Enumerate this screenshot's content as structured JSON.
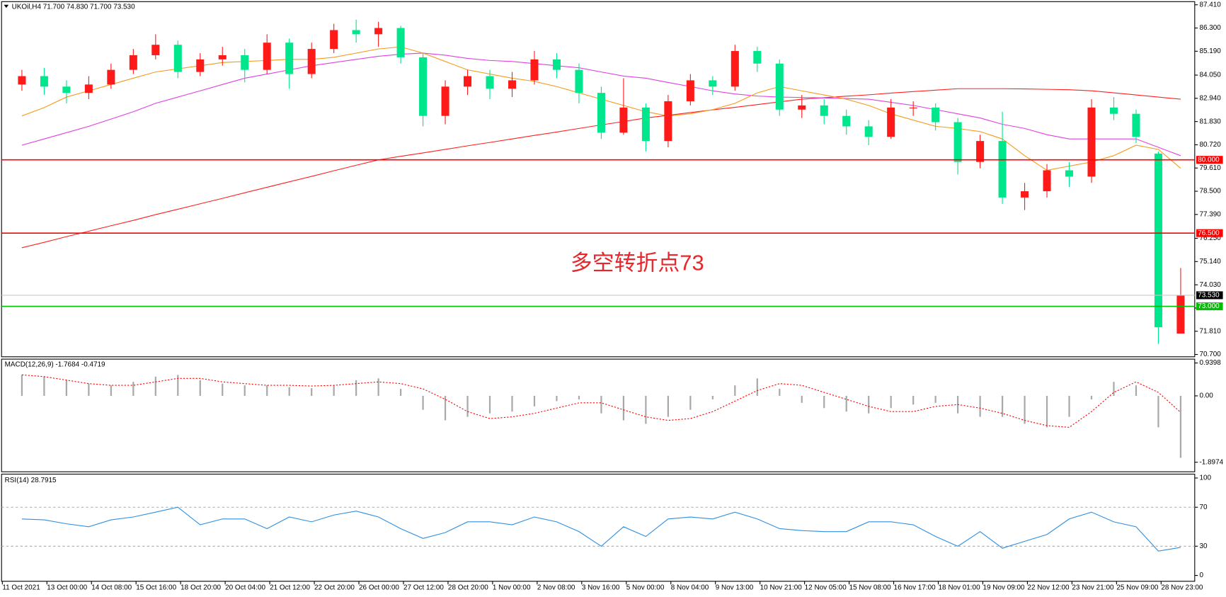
{
  "chart_data": [
    {
      "type": "candlestick",
      "title": "UKOil,H4  71.700 74.830 71.700 73.530",
      "categories": [
        "11 Oct 2021",
        null,
        "13 Oct 00:00",
        null,
        "14 Oct 08:00",
        null,
        "15 Oct 16:00",
        null,
        "18 Oct 20:00",
        null,
        "20 Oct 04:00",
        null,
        "21 Oct 12:00",
        null,
        "22 Oct 20:00",
        null,
        "26 Oct 00:00",
        null,
        "27 Oct 12:00",
        null,
        "28 Oct 20:00",
        null,
        "1 Nov 00:00",
        null,
        "2 Nov 08:00",
        null,
        "3 Nov 16:00",
        null,
        "5 Nov 00:00",
        null,
        "8 Nov 04:00",
        null,
        "9 Nov 13:00",
        null,
        "10 Nov 21:00",
        null,
        "12 Nov 05:00",
        null,
        "15 Nov 08:00",
        null,
        "16 Nov 17:00",
        null,
        "18 Nov 01:00",
        null,
        "19 Nov 09:00",
        null,
        "22 Nov 12:00",
        null,
        "23 Nov 21:00",
        null,
        "25 Nov 09:00",
        null,
        "28 Nov 23:00"
      ],
      "open": [
        83.6,
        84.0,
        83.5,
        83.2,
        83.6,
        84.3,
        85.0,
        85.5,
        84.2,
        84.8,
        85.0,
        84.3,
        85.6,
        84.1,
        85.3,
        86.2,
        86.0,
        86.3,
        84.9,
        82.1,
        83.5,
        84.0,
        83.4,
        83.8,
        84.8,
        84.3,
        83.2,
        81.3,
        82.5,
        80.9,
        82.8,
        83.8,
        83.5,
        85.2,
        84.6,
        82.4,
        82.6,
        82.1,
        81.6,
        81.1,
        82.5,
        82.5,
        81.8,
        79.9,
        80.9,
        78.2,
        78.5,
        79.5,
        79.2,
        82.5,
        82.2,
        80.3,
        71.7
      ],
      "high": [
        84.3,
        84.4,
        83.8,
        84.0,
        84.6,
        85.3,
        86.0,
        85.7,
        85.1,
        85.4,
        85.3,
        86.0,
        85.8,
        85.6,
        86.5,
        86.7,
        86.6,
        86.4,
        85.1,
        83.8,
        84.3,
        84.3,
        84.2,
        85.2,
        85.1,
        84.6,
        83.5,
        83.9,
        82.7,
        83.1,
        84.1,
        84.0,
        85.5,
        85.4,
        84.8,
        83.1,
        82.9,
        82.4,
        81.9,
        82.9,
        82.8,
        82.7,
        82.0,
        81.2,
        82.3,
        78.9,
        79.8,
        79.9,
        82.9,
        83.0,
        82.4,
        80.4,
        74.83
      ],
      "low": [
        83.3,
        83.1,
        82.7,
        82.9,
        83.4,
        84.1,
        84.8,
        83.9,
        84.0,
        84.5,
        83.7,
        84.1,
        83.4,
        83.9,
        85.1,
        85.6,
        85.4,
        84.6,
        81.6,
        81.7,
        83.1,
        82.9,
        83.0,
        83.6,
        83.9,
        82.7,
        81.0,
        81.2,
        80.4,
        80.6,
        82.6,
        83.1,
        83.3,
        84.2,
        82.1,
        82.0,
        81.7,
        81.2,
        80.7,
        81.0,
        82.1,
        81.4,
        79.3,
        79.6,
        77.9,
        77.6,
        78.2,
        78.7,
        78.9,
        81.9,
        80.8,
        71.2,
        71.7
      ],
      "close": [
        84.0,
        83.5,
        83.2,
        83.6,
        84.3,
        85.0,
        85.5,
        84.2,
        84.8,
        85.0,
        84.3,
        85.6,
        84.1,
        85.3,
        86.2,
        86.0,
        86.3,
        84.9,
        82.1,
        83.5,
        84.0,
        83.4,
        83.8,
        84.8,
        84.3,
        83.2,
        81.3,
        82.5,
        80.9,
        82.8,
        83.8,
        83.5,
        85.2,
        84.6,
        82.4,
        82.6,
        82.1,
        81.6,
        81.1,
        82.5,
        82.5,
        81.8,
        79.9,
        80.9,
        78.2,
        78.5,
        79.5,
        79.2,
        82.5,
        82.2,
        81.1,
        72.0,
        73.53
      ],
      "up_color": "#ff1a1a",
      "down_color": "#00e68c",
      "ylim": [
        70.59,
        87.56
      ],
      "yticks": [
        {
          "value": 87.41,
          "label": "87.410"
        },
        {
          "value": 86.3,
          "label": "86.300"
        },
        {
          "value": 85.19,
          "label": "85.190"
        },
        {
          "value": 84.05,
          "label": "84.050"
        },
        {
          "value": 82.94,
          "label": "82.940"
        },
        {
          "value": 81.83,
          "label": "81.830"
        },
        {
          "value": 80.72,
          "label": "80.720"
        },
        {
          "value": 79.61,
          "label": "79.610"
        },
        {
          "value": 78.5,
          "label": "78.500"
        },
        {
          "value": 77.39,
          "label": "77.390"
        },
        {
          "value": 76.25,
          "label": "76.250"
        },
        {
          "value": 75.14,
          "label": "75.140"
        },
        {
          "value": 74.03,
          "label": "74.030"
        },
        {
          "value": 72.92,
          "label": "72.920"
        },
        {
          "value": 71.81,
          "label": "71.810"
        },
        {
          "value": 70.7,
          "label": "70.700"
        }
      ],
      "series": [
        {
          "color": "#ff2020",
          "values": [
            75.8,
            76.06,
            76.33,
            76.59,
            76.85,
            77.11,
            77.38,
            77.64,
            77.9,
            78.16,
            78.43,
            78.69,
            78.95,
            79.21,
            79.48,
            79.74,
            80.0,
            80.17,
            80.33,
            80.5,
            80.67,
            80.83,
            81.0,
            81.17,
            81.33,
            81.5,
            81.67,
            81.83,
            82.0,
            82.13,
            82.26,
            82.39,
            82.51,
            82.64,
            82.77,
            82.9,
            82.97,
            83.04,
            83.11,
            83.19,
            83.26,
            83.33,
            83.4,
            83.4,
            83.4,
            83.39,
            83.37,
            83.35,
            83.3,
            83.2,
            83.1,
            83.0,
            82.9
          ]
        },
        {
          "color": "#e040e0",
          "values": [
            80.7,
            81.0,
            81.3,
            81.6,
            81.95,
            82.3,
            82.7,
            83.0,
            83.3,
            83.6,
            83.9,
            84.1,
            84.3,
            84.5,
            84.65,
            84.8,
            84.95,
            85.05,
            85.1,
            85.0,
            84.85,
            84.75,
            84.7,
            84.6,
            84.5,
            84.4,
            84.2,
            84.0,
            83.9,
            83.7,
            83.5,
            83.3,
            83.15,
            83.05,
            83.0,
            82.98,
            82.96,
            82.93,
            82.9,
            82.75,
            82.6,
            82.4,
            82.2,
            82.0,
            81.7,
            81.5,
            81.2,
            81.0,
            81.0,
            81.0,
            81.0,
            80.6,
            80.2
          ]
        },
        {
          "color": "#f39c1e",
          "values": [
            82.1,
            82.5,
            83.0,
            83.3,
            83.6,
            83.9,
            84.2,
            84.35,
            84.5,
            84.65,
            84.7,
            84.75,
            84.8,
            84.8,
            84.9,
            85.1,
            85.3,
            85.4,
            85.1,
            84.7,
            84.3,
            84.1,
            83.9,
            83.75,
            83.5,
            83.2,
            82.9,
            82.6,
            82.3,
            82.1,
            82.2,
            82.4,
            82.7,
            83.2,
            83.5,
            83.3,
            83.1,
            82.9,
            82.6,
            82.2,
            81.9,
            81.6,
            81.5,
            81.35,
            81.0,
            80.2,
            79.5,
            79.7,
            79.9,
            80.2,
            80.7,
            80.5,
            79.6
          ]
        }
      ],
      "levels": [
        {
          "value": 80,
          "label": "80.000",
          "color": "#ff0000",
          "box_color": "#ff0000"
        },
        {
          "value": 76.5,
          "label": "76.500",
          "color": "#ff0000",
          "box_color": "#ff0000"
        },
        {
          "value": 73,
          "label": "73.000",
          "color": "#00c000",
          "box_color": "#00c000"
        },
        {
          "value": 73.53,
          "label": "73.530",
          "color": "#c8c8c8",
          "box_color": "#000000"
        }
      ],
      "annotation": "多空转折点73",
      "annotation_color": "#e8262b"
    },
    {
      "type": "macd",
      "title": "MACD(12,26,9) -1.7684 -0.4719",
      "values": [
        0.6,
        0.55,
        0.45,
        0.35,
        0.3,
        0.4,
        0.55,
        0.6,
        0.45,
        0.35,
        0.3,
        0.3,
        0.25,
        0.22,
        0.3,
        0.45,
        0.5,
        0.2,
        -0.4,
        -0.7,
        -0.6,
        -0.5,
        -0.45,
        -0.3,
        -0.15,
        -0.1,
        -0.5,
        -0.7,
        -0.8,
        -0.6,
        -0.4,
        -0.1,
        0.3,
        0.5,
        0.2,
        -0.2,
        -0.35,
        -0.45,
        -0.5,
        -0.35,
        -0.25,
        -0.2,
        -0.5,
        -0.6,
        -0.6,
        -0.8,
        -0.9,
        -0.6,
        -0.1,
        0.4,
        0.3,
        -0.9,
        -1.7684
      ],
      "color": "#a8a8a8",
      "signal": {
        "color": "#ff0000",
        "values": [
          0.6,
          0.55,
          0.45,
          0.35,
          0.3,
          0.3,
          0.4,
          0.5,
          0.5,
          0.4,
          0.35,
          0.3,
          0.3,
          0.28,
          0.3,
          0.35,
          0.4,
          0.35,
          0.2,
          -0.1,
          -0.45,
          -0.65,
          -0.6,
          -0.5,
          -0.35,
          -0.2,
          -0.2,
          -0.4,
          -0.6,
          -0.7,
          -0.65,
          -0.45,
          -0.15,
          0.15,
          0.35,
          0.3,
          0.1,
          -0.1,
          -0.3,
          -0.45,
          -0.45,
          -0.3,
          -0.25,
          -0.35,
          -0.5,
          -0.7,
          -0.85,
          -0.9,
          -0.45,
          0.1,
          0.4,
          0.1,
          -0.4719
        ]
      },
      "ylim": [
        -2.17,
        1.05
      ],
      "yticks": [
        0.9398,
        {
          "value": 0,
          "label": "0.00"
        },
        -1.8974
      ]
    },
    {
      "type": "line",
      "title": "RSI(14) 28.7915",
      "values": [
        58,
        57,
        53,
        50,
        57,
        60,
        65,
        70,
        52,
        58,
        58,
        48,
        60,
        55,
        62,
        66,
        60,
        48,
        38,
        44,
        55,
        55,
        52,
        60,
        55,
        45,
        30,
        50,
        40,
        58,
        60,
        58,
        65,
        58,
        48,
        46,
        45,
        45,
        55,
        55,
        52,
        40,
        30,
        45,
        28,
        35,
        42,
        58,
        65,
        55,
        50,
        25,
        28.7915
      ],
      "color": "#2e8fe0",
      "ylim": [
        -6,
        104
      ],
      "yticks": [
        0,
        30,
        70,
        100
      ],
      "grid_lines": [
        30,
        70
      ]
    }
  ]
}
